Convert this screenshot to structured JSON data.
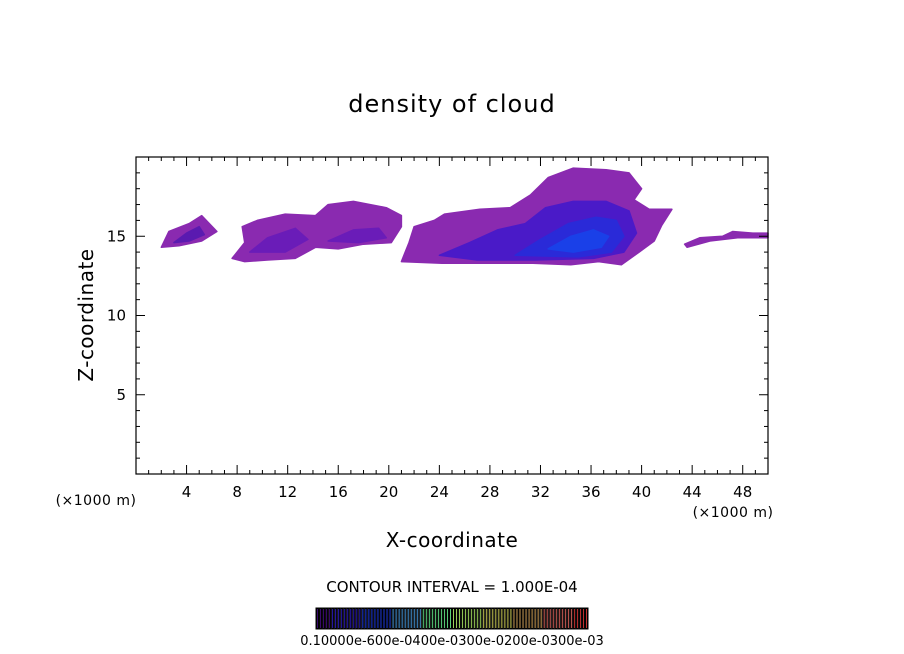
{
  "chart_data": {
    "type": "heatmap",
    "title": "density of cloud",
    "xlabel": "X-coordinate",
    "ylabel": "Z-coordinate",
    "x_unit_left": "(×1000 m)",
    "x_unit_right": "(×1000 m)",
    "xlim": [
      0,
      50
    ],
    "ylim": [
      0,
      20
    ],
    "x_ticks": [
      4,
      8,
      12,
      16,
      20,
      24,
      28,
      32,
      36,
      40,
      44,
      48
    ],
    "x_tick_labels": [
      "4",
      "8",
      "12",
      "16",
      "20",
      "24",
      "28",
      "32",
      "36",
      "40",
      "44",
      "48"
    ],
    "y_ticks": [
      5,
      10,
      15
    ],
    "y_tick_labels": [
      "5",
      "10",
      "15"
    ],
    "contour_interval_text": "CONTOUR INTERVAL = 1.000E-04",
    "colorbar_labels_text": "0.10000e-600e-0400e-0300e-0200e-0300e-03",
    "colorbar_colors": [
      "#3a0a6e",
      "#2a1ab4",
      "#1e3adc",
      "#4a9adc",
      "#5ad07a",
      "#9ad05a",
      "#d0d05a",
      "#d0a05a",
      "#d0605a",
      "#c03030"
    ],
    "regions": [
      {
        "level": 1,
        "color": "#8a2ab0",
        "polygon": [
          [
            2,
            14.3
          ],
          [
            2.6,
            15.3
          ],
          [
            4.2,
            15.8
          ],
          [
            5.2,
            16.3
          ],
          [
            6.4,
            15.3
          ],
          [
            5.2,
            14.7
          ],
          [
            3.4,
            14.4
          ]
        ]
      },
      {
        "level": 2,
        "color": "#5a1ab0",
        "polygon": [
          [
            3.0,
            14.6
          ],
          [
            4.0,
            15.2
          ],
          [
            5.0,
            15.6
          ],
          [
            5.4,
            15.1
          ],
          [
            4.2,
            14.7
          ]
        ]
      },
      {
        "level": 1,
        "color": "#8a2ab0",
        "polygon": [
          [
            7.6,
            13.6
          ],
          [
            8.6,
            14.6
          ],
          [
            8.4,
            15.6
          ],
          [
            9.6,
            16.0
          ],
          [
            11.8,
            16.4
          ],
          [
            14.2,
            16.3
          ],
          [
            15.2,
            17.0
          ],
          [
            17.2,
            17.2
          ],
          [
            19.8,
            16.8
          ],
          [
            21.0,
            16.3
          ],
          [
            21.0,
            15.6
          ],
          [
            20.2,
            14.6
          ],
          [
            18.0,
            14.5
          ],
          [
            16.0,
            14.2
          ],
          [
            14.2,
            14.3
          ],
          [
            12.6,
            13.6
          ],
          [
            10.4,
            13.5
          ],
          [
            8.6,
            13.4
          ]
        ]
      },
      {
        "level": 2,
        "color": "#6a1cb8",
        "polygon": [
          [
            9.0,
            14.0
          ],
          [
            10.4,
            14.9
          ],
          [
            12.6,
            15.5
          ],
          [
            13.6,
            14.8
          ],
          [
            11.8,
            14.0
          ]
        ]
      },
      {
        "level": 2,
        "color": "#6a1cb8",
        "polygon": [
          [
            15.2,
            14.7
          ],
          [
            17.2,
            15.4
          ],
          [
            19.2,
            15.5
          ],
          [
            19.8,
            14.9
          ],
          [
            17.6,
            14.6
          ]
        ]
      },
      {
        "level": 1,
        "color": "#8a2ab0",
        "polygon": [
          [
            21.0,
            13.4
          ],
          [
            21.6,
            14.6
          ],
          [
            22.0,
            15.6
          ],
          [
            23.6,
            16.0
          ],
          [
            24.4,
            16.4
          ],
          [
            27.2,
            16.7
          ],
          [
            29.6,
            16.8
          ],
          [
            31.2,
            17.6
          ],
          [
            32.6,
            18.7
          ],
          [
            34.6,
            19.3
          ],
          [
            37.2,
            19.2
          ],
          [
            39.0,
            19.0
          ],
          [
            40.0,
            18.0
          ],
          [
            39.4,
            17.3
          ],
          [
            40.6,
            16.7
          ],
          [
            42.4,
            16.7
          ],
          [
            41.6,
            15.7
          ],
          [
            41.0,
            14.7
          ],
          [
            39.8,
            14.0
          ],
          [
            38.4,
            13.2
          ],
          [
            36.6,
            13.4
          ],
          [
            34.4,
            13.2
          ],
          [
            31.4,
            13.3
          ],
          [
            27.6,
            13.3
          ],
          [
            24.2,
            13.3
          ]
        ]
      },
      {
        "level": 3,
        "color": "#4a1ac8",
        "polygon": [
          [
            24.0,
            13.8
          ],
          [
            26.4,
            14.6
          ],
          [
            28.6,
            15.4
          ],
          [
            30.8,
            15.8
          ],
          [
            32.4,
            16.8
          ],
          [
            34.6,
            17.2
          ],
          [
            37.2,
            17.2
          ],
          [
            39.0,
            16.6
          ],
          [
            39.6,
            15.2
          ],
          [
            38.6,
            14.0
          ],
          [
            36.2,
            13.6
          ],
          [
            31.6,
            13.5
          ],
          [
            27.0,
            13.5
          ]
        ]
      },
      {
        "level": 4,
        "color": "#2a2ad8",
        "polygon": [
          [
            30.0,
            13.8
          ],
          [
            32.0,
            14.8
          ],
          [
            34.2,
            15.8
          ],
          [
            36.4,
            16.2
          ],
          [
            38.0,
            16.0
          ],
          [
            38.6,
            15.0
          ],
          [
            37.6,
            14.0
          ],
          [
            35.0,
            13.7
          ]
        ]
      },
      {
        "level": 5,
        "color": "#1a40e8",
        "polygon": [
          [
            32.6,
            14.2
          ],
          [
            34.4,
            15.0
          ],
          [
            36.2,
            15.4
          ],
          [
            37.4,
            15.0
          ],
          [
            36.8,
            14.3
          ],
          [
            34.6,
            14.0
          ]
        ]
      },
      {
        "level": 1,
        "color": "#8a2ab0",
        "polygon": [
          [
            43.4,
            14.5
          ],
          [
            44.6,
            14.9
          ],
          [
            46.4,
            15.0
          ],
          [
            47.2,
            15.3
          ],
          [
            48.8,
            15.2
          ],
          [
            50.0,
            15.2
          ],
          [
            50.0,
            14.9
          ],
          [
            47.6,
            14.9
          ],
          [
            45.4,
            14.7
          ],
          [
            43.6,
            14.3
          ]
        ]
      }
    ]
  }
}
